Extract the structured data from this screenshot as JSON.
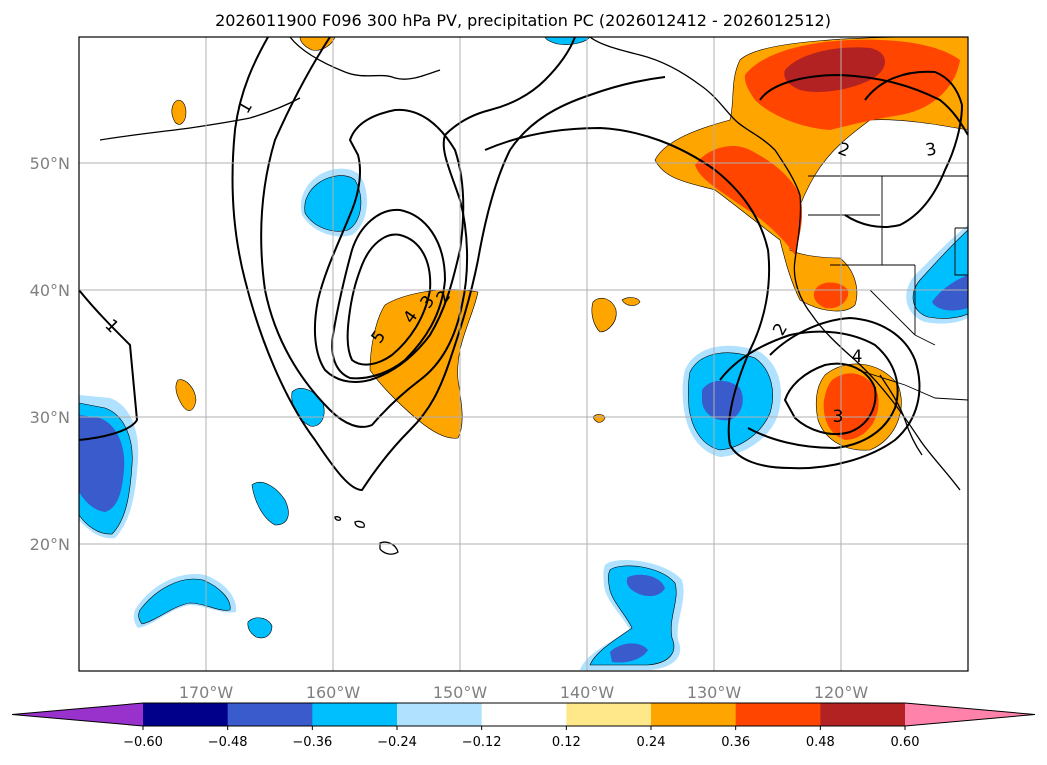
{
  "chart_data": {
    "type": "contour_map",
    "title": "2026011900 F096 300 hPa PV, precipitation PC (2026012412 - 2026012512)",
    "projection": "lat-lon",
    "lon_range": [
      -180,
      -110
    ],
    "lat_range": [
      10,
      60
    ],
    "x_ticks": [
      {
        "lon": -170,
        "label": "170°W"
      },
      {
        "lon": -160,
        "label": "160°W"
      },
      {
        "lon": -150,
        "label": "150°W"
      },
      {
        "lon": -140,
        "label": "140°W"
      },
      {
        "lon": -130,
        "label": "130°W"
      },
      {
        "lon": -120,
        "label": "120°W"
      }
    ],
    "y_ticks": [
      {
        "lat": 20,
        "label": "20°N"
      },
      {
        "lat": 30,
        "label": "30°N"
      },
      {
        "lat": 40,
        "label": "40°N"
      },
      {
        "lat": 50,
        "label": "50°N"
      }
    ],
    "grid": true,
    "colorbar": {
      "orientation": "horizontal",
      "extend": "both",
      "levels": [
        -0.6,
        -0.48,
        -0.36,
        -0.24,
        -0.12,
        0.12,
        0.24,
        0.36,
        0.48,
        0.6
      ],
      "tick_labels": [
        "−0.60",
        "−0.48",
        "−0.36",
        "−0.24",
        "−0.12",
        "0.12",
        "0.24",
        "0.36",
        "0.48",
        "0.60"
      ],
      "colors": [
        "#9932cc",
        "#00008b",
        "#3a5bcc",
        "#00bfff",
        "#b0e2ff",
        "#ffffff",
        "#ffe88a",
        "#ffa500",
        "#ff4500",
        "#b22222",
        "#ff82ab"
      ]
    },
    "pv_contour_labels": [
      "1",
      "1",
      "2",
      "3",
      "4",
      "5",
      "2",
      "3",
      "4",
      "2",
      "3"
    ]
  }
}
